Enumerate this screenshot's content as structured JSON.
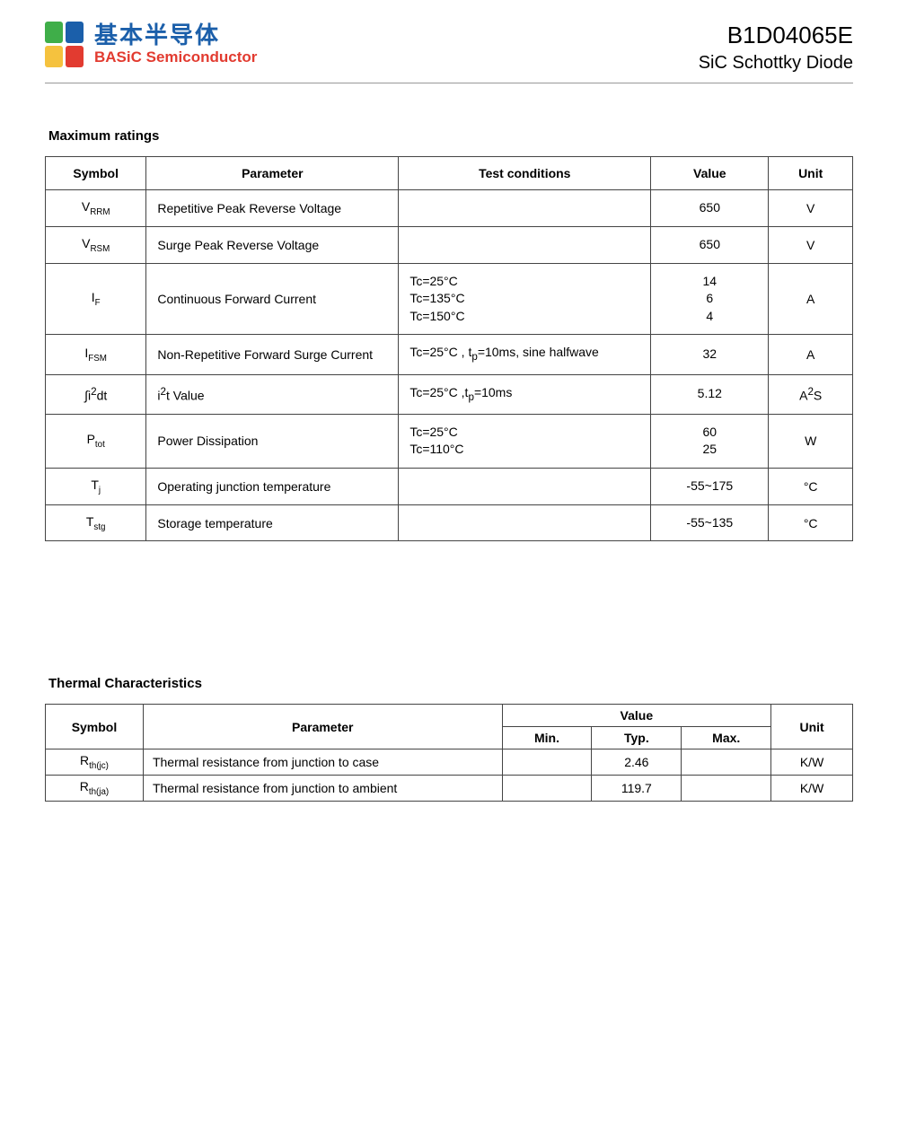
{
  "header": {
    "logo_cn": "基本半导体",
    "logo_en": "BASiC Semiconductor",
    "part_number": "B1D04065E",
    "part_desc": "SiC Schottky Diode",
    "logo_colors": {
      "green": "#3fae49",
      "blue": "#1b5faa",
      "yellow": "#f5c23e",
      "red": "#e23b30"
    }
  },
  "max_ratings": {
    "title": "Maximum ratings",
    "columns": [
      "Symbol",
      "Parameter",
      "Test conditions",
      "Value",
      "Unit"
    ],
    "rows": [
      {
        "symbol_main": "V",
        "symbol_sub": "RRM",
        "param": "Repetitive Peak Reverse Voltage",
        "cond": "",
        "value": "650",
        "unit": "V"
      },
      {
        "symbol_main": "V",
        "symbol_sub": "RSM",
        "param": "Surge Peak Reverse Voltage",
        "cond": "",
        "value": "650",
        "unit": "V"
      },
      {
        "symbol_main": "I",
        "symbol_sub": "F",
        "param": "Continuous Forward Current",
        "cond_lines": [
          "Tc=25°C",
          "Tc=135°C",
          "Tc=150°C"
        ],
        "value_lines": [
          "14",
          "6",
          "4"
        ],
        "unit": "A"
      },
      {
        "symbol_main": "I",
        "symbol_sub": "FSM",
        "param": "Non-Repetitive Forward Surge Current",
        "cond_html": "Tc=25°C , t<sub>p</sub>=10ms, sine halfwave",
        "value": "32",
        "unit": "A"
      },
      {
        "symbol_html": "∫i<sup>2</sup>dt",
        "param_html": "i<sup>2</sup>t Value",
        "cond_html": "Tc=25°C ,t<sub>p</sub>=10ms",
        "value": "5.12",
        "unit_html": "A<sup>2</sup>S"
      },
      {
        "symbol_main": "P",
        "symbol_sub": "tot",
        "param": "Power Dissipation",
        "cond_lines": [
          "Tc=25°C",
          "Tc=110°C"
        ],
        "value_lines": [
          "60",
          "25"
        ],
        "unit": "W"
      },
      {
        "symbol_main": "T",
        "symbol_sub": "j",
        "param": "Operating junction temperature",
        "cond": "",
        "value": "-55~175",
        "unit": "°C"
      },
      {
        "symbol_main": "T",
        "symbol_sub": "stg",
        "param": "Storage temperature",
        "cond": "",
        "value": "-55~135",
        "unit": "°C"
      }
    ]
  },
  "thermal": {
    "title": "Thermal Characteristics",
    "header_row1": [
      "Symbol",
      "Parameter",
      "Value",
      "Unit"
    ],
    "header_row2": [
      "Min.",
      "Typ.",
      "Max."
    ],
    "rows": [
      {
        "symbol_main": "R",
        "symbol_sub": "th(jc)",
        "param": "Thermal resistance from junction to case",
        "min": "",
        "typ": "2.46",
        "max": "",
        "unit": "K/W"
      },
      {
        "symbol_main": "R",
        "symbol_sub": "th(ja)",
        "param": "Thermal resistance from junction to ambient",
        "min": "",
        "typ": "119.7",
        "max": "",
        "unit": "K/W"
      }
    ]
  }
}
